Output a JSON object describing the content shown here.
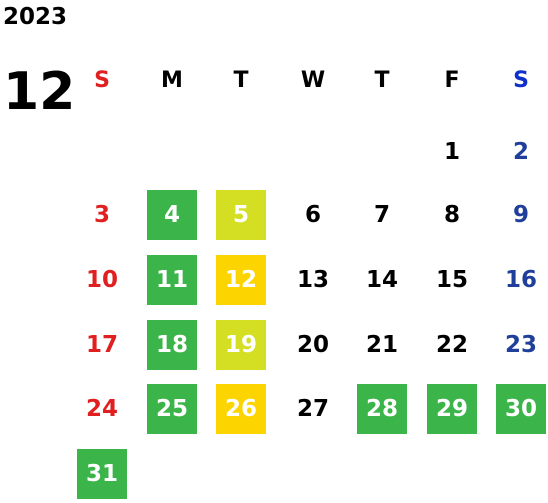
{
  "year": "2023",
  "month": "12",
  "weekdays": [
    {
      "label": "S",
      "color": "#e02020"
    },
    {
      "label": "M",
      "color": "#000000"
    },
    {
      "label": "T",
      "color": "#000000"
    },
    {
      "label": "W",
      "color": "#000000"
    },
    {
      "label": "T",
      "color": "#000000"
    },
    {
      "label": "F",
      "color": "#000000"
    },
    {
      "label": "S",
      "color": "#1030c8"
    }
  ],
  "first_weekday_index": 5,
  "days_in_month": 31,
  "highlight_colors": {
    "green": "#3bb54a",
    "lime": "#d4de22",
    "yellow": "#fcd400"
  },
  "highlights": {
    "4": "green",
    "5": "lime",
    "11": "green",
    "12": "yellow",
    "18": "green",
    "19": "lime",
    "25": "green",
    "26": "yellow",
    "28": "green",
    "29": "green",
    "30": "green",
    "31": "green"
  },
  "colors": {
    "sunday": "#e02020",
    "saturday": "#1f3f9a",
    "weekday": "#000000",
    "highlight_text": "#ffffff"
  }
}
